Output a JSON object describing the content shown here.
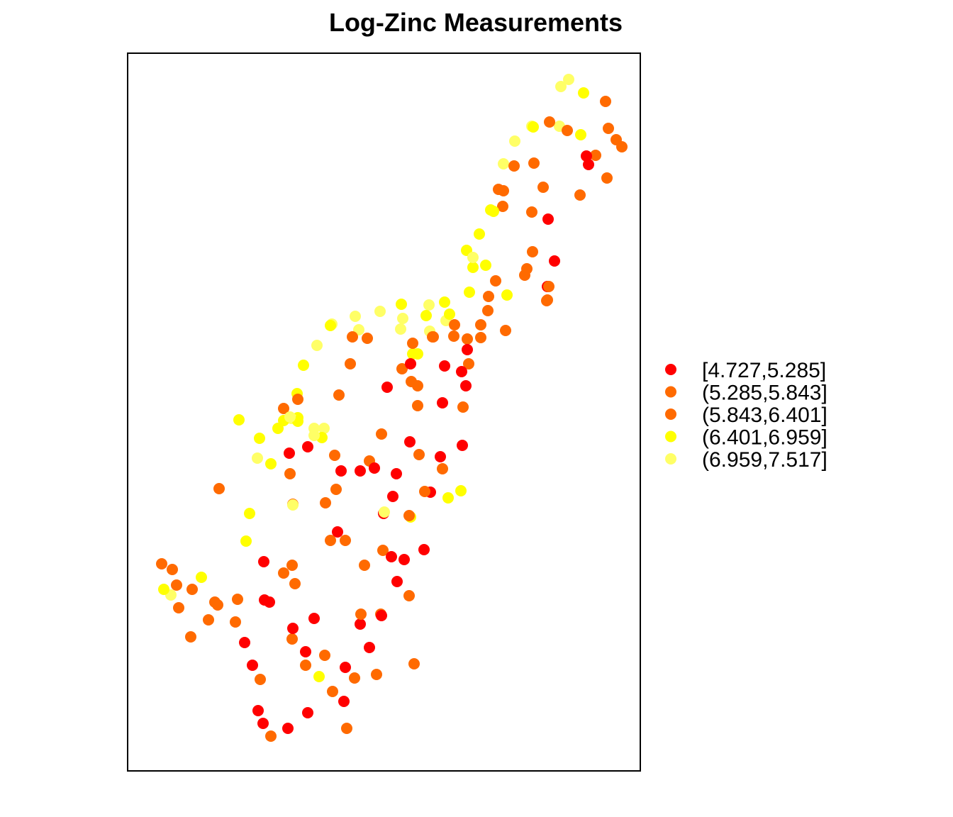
{
  "chart_data": {
    "type": "scatter",
    "title": "Log-Zinc Measurements",
    "xlabel": "",
    "ylabel": "",
    "axes_shown": false,
    "grid": false,
    "legend_position": "right",
    "xlim": [
      0,
      723
    ],
    "ylim": [
      0,
      1012
    ],
    "classes": [
      {
        "label": "[4.727,5.285]",
        "color": "#ff0000"
      },
      {
        "label": "(5.285,5.843]",
        "color": "#ff6a00"
      },
      {
        "label": "(5.843,6.401]",
        "color": "#ff6a00"
      },
      {
        "label": "(6.401,6.959]",
        "color": "#ffff00"
      },
      {
        "label": "(6.959,7.517]",
        "color": "#ffff66"
      }
    ],
    "points": [
      [
        622,
        975,
        4
      ],
      [
        611,
        965,
        4
      ],
      [
        643,
        956,
        3
      ],
      [
        674,
        944,
        2
      ],
      [
        678,
        906,
        2
      ],
      [
        609,
        909,
        4
      ],
      [
        570,
        909,
        4
      ],
      [
        595,
        915,
        1
      ],
      [
        620,
        903,
        2
      ],
      [
        639,
        897,
        3
      ],
      [
        660,
        868,
        1
      ],
      [
        650,
        855,
        0
      ],
      [
        647,
        867,
        0
      ],
      [
        572,
        908,
        3
      ],
      [
        546,
        888,
        4
      ],
      [
        530,
        856,
        4
      ],
      [
        545,
        853,
        1
      ],
      [
        523,
        820,
        1
      ],
      [
        573,
        857,
        1
      ],
      [
        689,
        890,
        1
      ],
      [
        697,
        880,
        1
      ],
      [
        676,
        836,
        1
      ],
      [
        638,
        812,
        2
      ],
      [
        529,
        796,
        2
      ],
      [
        512,
        791,
        3
      ],
      [
        530,
        818,
        1
      ],
      [
        516,
        789,
        3
      ],
      [
        586,
        823,
        1
      ],
      [
        593,
        778,
        0
      ],
      [
        570,
        788,
        1
      ],
      [
        571,
        732,
        1
      ],
      [
        602,
        719,
        0
      ],
      [
        496,
        757,
        3
      ],
      [
        487,
        710,
        3
      ],
      [
        478,
        734,
        3
      ],
      [
        487,
        724,
        4
      ],
      [
        505,
        713,
        3
      ],
      [
        482,
        675,
        3
      ],
      [
        519,
        691,
        2
      ],
      [
        560,
        699,
        2
      ],
      [
        563,
        708,
        1
      ],
      [
        535,
        671,
        3
      ],
      [
        509,
        669,
        2
      ],
      [
        508,
        649,
        1
      ],
      [
        447,
        661,
        3
      ],
      [
        425,
        657,
        4
      ],
      [
        421,
        642,
        3
      ],
      [
        426,
        620,
        4
      ],
      [
        449,
        635,
        4
      ],
      [
        592,
        683,
        0
      ],
      [
        591,
        663,
        1
      ],
      [
        533,
        621,
        2
      ],
      [
        592,
        664,
        1
      ],
      [
        498,
        629,
        2
      ],
      [
        481,
        574,
        1
      ],
      [
        594,
        683,
        1
      ],
      [
        498,
        611,
        1
      ],
      [
        479,
        609,
        2
      ],
      [
        460,
        613,
        2
      ],
      [
        409,
        588,
        3
      ],
      [
        385,
        623,
        4
      ],
      [
        454,
        644,
        3
      ],
      [
        386,
        658,
        3
      ],
      [
        388,
        638,
        4
      ],
      [
        356,
        648,
        4
      ],
      [
        321,
        641,
        4
      ],
      [
        288,
        630,
        4
      ],
      [
        326,
        622,
        4
      ],
      [
        267,
        600,
        4
      ],
      [
        248,
        572,
        3
      ],
      [
        239,
        532,
        3
      ],
      [
        240,
        498,
        3
      ],
      [
        286,
        628,
        3
      ],
      [
        317,
        612,
        2
      ],
      [
        338,
        610,
        2
      ],
      [
        314,
        574,
        1
      ],
      [
        298,
        530,
        2
      ],
      [
        402,
        588,
        3
      ],
      [
        430,
        612,
        1
      ],
      [
        400,
        549,
        1
      ],
      [
        387,
        567,
        1
      ],
      [
        461,
        629,
        2
      ],
      [
        431,
        612,
        1
      ],
      [
        471,
        563,
        0
      ],
      [
        402,
        603,
        2
      ],
      [
        366,
        541,
        0
      ],
      [
        409,
        543,
        1
      ],
      [
        409,
        515,
        2
      ],
      [
        399,
        574,
        0
      ],
      [
        479,
        594,
        0
      ],
      [
        477,
        543,
        0
      ],
      [
        473,
        513,
        1
      ],
      [
        444,
        519,
        0
      ],
      [
        447,
        571,
        0
      ],
      [
        472,
        459,
        0
      ],
      [
        341,
        437,
        2
      ],
      [
        328,
        423,
        0
      ],
      [
        292,
        445,
        2
      ],
      [
        411,
        446,
        2
      ],
      [
        398,
        464,
        0
      ],
      [
        441,
        443,
        0
      ],
      [
        379,
        419,
        0
      ],
      [
        374,
        387,
        0
      ],
      [
        361,
        363,
        0
      ],
      [
        296,
        337,
        0
      ],
      [
        228,
        448,
        0
      ],
      [
        229,
        419,
        1
      ],
      [
        233,
        376,
        2
      ],
      [
        301,
        423,
        0
      ],
      [
        307,
        325,
        1
      ],
      [
        286,
        325,
        1
      ],
      [
        294,
        397,
        2
      ],
      [
        334,
        290,
        1
      ],
      [
        232,
        290,
        2
      ],
      [
        358,
        475,
        1
      ],
      [
        427,
        393,
        0
      ],
      [
        418,
        312,
        0
      ],
      [
        220,
        511,
        2
      ],
      [
        172,
        363,
        3
      ],
      [
        202,
        433,
        3
      ],
      [
        157,
        495,
        3
      ],
      [
        183,
        441,
        4
      ],
      [
        233,
        375,
        4
      ],
      [
        277,
        483,
        4
      ],
      [
        274,
        470,
        3
      ],
      [
        240,
        524,
        1
      ],
      [
        279,
        378,
        2
      ],
      [
        129,
        398,
        2
      ],
      [
        167,
        324,
        3
      ],
      [
        104,
        273,
        3
      ],
      [
        72,
        230,
        2
      ],
      [
        91,
        256,
        1
      ],
      [
        61,
        248,
        4
      ],
      [
        48,
        292,
        1
      ],
      [
        69,
        262,
        2
      ],
      [
        127,
        234,
        2
      ],
      [
        123,
        238,
        2
      ],
      [
        114,
        213,
        2
      ],
      [
        63,
        284,
        2
      ],
      [
        51,
        256,
        3
      ],
      [
        89,
        189,
        2
      ],
      [
        155,
        242,
        1
      ],
      [
        152,
        210,
        2
      ],
      [
        165,
        181,
        0
      ],
      [
        187,
        129,
        1
      ],
      [
        176,
        149,
        0
      ],
      [
        191,
        67,
        0
      ],
      [
        184,
        85,
        0
      ],
      [
        202,
        49,
        1
      ],
      [
        226,
        60,
        0
      ],
      [
        254,
        82,
        0
      ],
      [
        270,
        133,
        3
      ],
      [
        289,
        112,
        2
      ],
      [
        320,
        131,
        2
      ],
      [
        404,
        151,
        1
      ],
      [
        305,
        98,
        0
      ],
      [
        309,
        60,
        1
      ],
      [
        397,
        247,
        2
      ],
      [
        390,
        298,
        0
      ],
      [
        380,
        267,
        0
      ],
      [
        328,
        207,
        0
      ],
      [
        263,
        215,
        0
      ],
      [
        220,
        279,
        1
      ],
      [
        200,
        238,
        0
      ],
      [
        251,
        168,
        0
      ],
      [
        232,
        186,
        1
      ],
      [
        193,
        241,
        0
      ],
      [
        236,
        264,
        1
      ],
      [
        192,
        295,
        0
      ],
      [
        233,
        201,
        0
      ],
      [
        251,
        149,
        1
      ],
      [
        278,
        163,
        1
      ],
      [
        357,
        221,
        1
      ],
      [
        329,
        221,
        1
      ],
      [
        358,
        219,
        0
      ],
      [
        341,
        174,
        0
      ],
      [
        351,
        136,
        2
      ],
      [
        307,
        146,
        0
      ],
      [
        360,
        311,
        2
      ],
      [
        372,
        302,
        0
      ],
      [
        399,
        358,
        3
      ],
      [
        362,
        365,
        4
      ],
      [
        397,
        360,
        1
      ],
      [
        419,
        394,
        2
      ],
      [
        452,
        385,
        3
      ],
      [
        470,
        395,
        3
      ],
      [
        444,
        426,
        1
      ],
      [
        348,
        427,
        0
      ],
      [
        231,
        497,
        4
      ],
      [
        186,
        469,
        3
      ],
      [
        220,
        494,
        3
      ],
      [
        240,
        493,
        3
      ],
      [
        212,
        483,
        3
      ],
      [
        263,
        483,
        4
      ],
      [
        263,
        473,
        4
      ],
      [
        254,
        457,
        0
      ],
      [
        229,
        499,
        4
      ]
    ]
  }
}
